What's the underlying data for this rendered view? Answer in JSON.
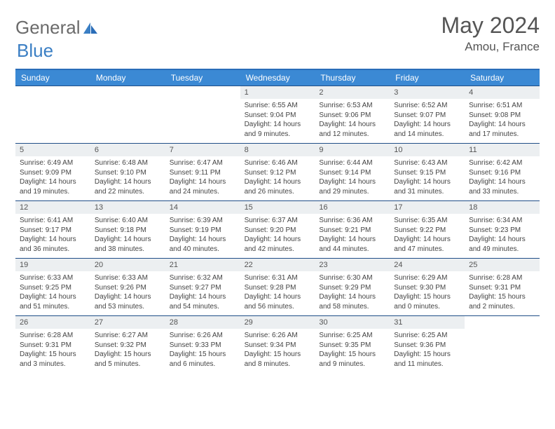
{
  "logo": {
    "text1": "General",
    "text2": "Blue"
  },
  "title": "May 2024",
  "location": "Amou, France",
  "colors": {
    "header_bg": "#3b89d4",
    "header_text": "#ffffff",
    "border_top": "#2a6db8",
    "week_border": "#1f4e87",
    "daynum_bg": "#eceff1",
    "text": "#444444",
    "logo_gray": "#6b6b6b",
    "logo_blue": "#3b7fc4"
  },
  "day_labels": [
    "Sunday",
    "Monday",
    "Tuesday",
    "Wednesday",
    "Thursday",
    "Friday",
    "Saturday"
  ],
  "weeks": [
    [
      {
        "empty": true
      },
      {
        "empty": true
      },
      {
        "empty": true
      },
      {
        "n": "1",
        "sr": "6:55 AM",
        "ss": "9:04 PM",
        "dl": "14 hours and 9 minutes."
      },
      {
        "n": "2",
        "sr": "6:53 AM",
        "ss": "9:06 PM",
        "dl": "14 hours and 12 minutes."
      },
      {
        "n": "3",
        "sr": "6:52 AM",
        "ss": "9:07 PM",
        "dl": "14 hours and 14 minutes."
      },
      {
        "n": "4",
        "sr": "6:51 AM",
        "ss": "9:08 PM",
        "dl": "14 hours and 17 minutes."
      }
    ],
    [
      {
        "n": "5",
        "sr": "6:49 AM",
        "ss": "9:09 PM",
        "dl": "14 hours and 19 minutes."
      },
      {
        "n": "6",
        "sr": "6:48 AM",
        "ss": "9:10 PM",
        "dl": "14 hours and 22 minutes."
      },
      {
        "n": "7",
        "sr": "6:47 AM",
        "ss": "9:11 PM",
        "dl": "14 hours and 24 minutes."
      },
      {
        "n": "8",
        "sr": "6:46 AM",
        "ss": "9:12 PM",
        "dl": "14 hours and 26 minutes."
      },
      {
        "n": "9",
        "sr": "6:44 AM",
        "ss": "9:14 PM",
        "dl": "14 hours and 29 minutes."
      },
      {
        "n": "10",
        "sr": "6:43 AM",
        "ss": "9:15 PM",
        "dl": "14 hours and 31 minutes."
      },
      {
        "n": "11",
        "sr": "6:42 AM",
        "ss": "9:16 PM",
        "dl": "14 hours and 33 minutes."
      }
    ],
    [
      {
        "n": "12",
        "sr": "6:41 AM",
        "ss": "9:17 PM",
        "dl": "14 hours and 36 minutes."
      },
      {
        "n": "13",
        "sr": "6:40 AM",
        "ss": "9:18 PM",
        "dl": "14 hours and 38 minutes."
      },
      {
        "n": "14",
        "sr": "6:39 AM",
        "ss": "9:19 PM",
        "dl": "14 hours and 40 minutes."
      },
      {
        "n": "15",
        "sr": "6:37 AM",
        "ss": "9:20 PM",
        "dl": "14 hours and 42 minutes."
      },
      {
        "n": "16",
        "sr": "6:36 AM",
        "ss": "9:21 PM",
        "dl": "14 hours and 44 minutes."
      },
      {
        "n": "17",
        "sr": "6:35 AM",
        "ss": "9:22 PM",
        "dl": "14 hours and 47 minutes."
      },
      {
        "n": "18",
        "sr": "6:34 AM",
        "ss": "9:23 PM",
        "dl": "14 hours and 49 minutes."
      }
    ],
    [
      {
        "n": "19",
        "sr": "6:33 AM",
        "ss": "9:25 PM",
        "dl": "14 hours and 51 minutes."
      },
      {
        "n": "20",
        "sr": "6:33 AM",
        "ss": "9:26 PM",
        "dl": "14 hours and 53 minutes."
      },
      {
        "n": "21",
        "sr": "6:32 AM",
        "ss": "9:27 PM",
        "dl": "14 hours and 54 minutes."
      },
      {
        "n": "22",
        "sr": "6:31 AM",
        "ss": "9:28 PM",
        "dl": "14 hours and 56 minutes."
      },
      {
        "n": "23",
        "sr": "6:30 AM",
        "ss": "9:29 PM",
        "dl": "14 hours and 58 minutes."
      },
      {
        "n": "24",
        "sr": "6:29 AM",
        "ss": "9:30 PM",
        "dl": "15 hours and 0 minutes."
      },
      {
        "n": "25",
        "sr": "6:28 AM",
        "ss": "9:31 PM",
        "dl": "15 hours and 2 minutes."
      }
    ],
    [
      {
        "n": "26",
        "sr": "6:28 AM",
        "ss": "9:31 PM",
        "dl": "15 hours and 3 minutes."
      },
      {
        "n": "27",
        "sr": "6:27 AM",
        "ss": "9:32 PM",
        "dl": "15 hours and 5 minutes."
      },
      {
        "n": "28",
        "sr": "6:26 AM",
        "ss": "9:33 PM",
        "dl": "15 hours and 6 minutes."
      },
      {
        "n": "29",
        "sr": "6:26 AM",
        "ss": "9:34 PM",
        "dl": "15 hours and 8 minutes."
      },
      {
        "n": "30",
        "sr": "6:25 AM",
        "ss": "9:35 PM",
        "dl": "15 hours and 9 minutes."
      },
      {
        "n": "31",
        "sr": "6:25 AM",
        "ss": "9:36 PM",
        "dl": "15 hours and 11 minutes."
      },
      {
        "empty": true
      }
    ]
  ],
  "labels": {
    "sunrise": "Sunrise: ",
    "sunset": "Sunset: ",
    "daylight": "Daylight: "
  }
}
